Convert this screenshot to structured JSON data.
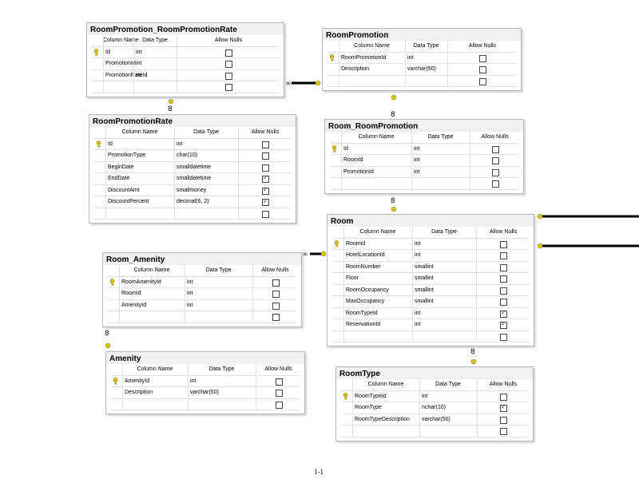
{
  "tables": {
    "rprr": {
      "title": "RoomPromotion_RoomPromotionRate",
      "headers": [
        "Column Name",
        "Data Type",
        "Allow Nulls"
      ],
      "rows": [
        {
          "name": "Id",
          "type": "int",
          "nulls": false,
          "key": true
        },
        {
          "name": "PromotionId",
          "type": "int",
          "nulls": false,
          "key": false
        },
        {
          "name": "PromotionRateId",
          "type": "int",
          "nulls": false,
          "key": false
        },
        {
          "name": "",
          "type": "",
          "nulls": false,
          "key": false
        }
      ]
    },
    "rp": {
      "title": "RoomPromotion",
      "headers": [
        "Column Name",
        "Data Type",
        "Allow Nulls"
      ],
      "rows": [
        {
          "name": "RoomPromotionId",
          "type": "int",
          "nulls": false,
          "key": true
        },
        {
          "name": "Description",
          "type": "varchar(50)",
          "nulls": false,
          "key": false
        },
        {
          "name": "",
          "type": "",
          "nulls": false,
          "key": false
        }
      ]
    },
    "rpr": {
      "title": "RoomPromotionRate",
      "headers": [
        "Column Name",
        "Data Type",
        "Allow Nulls"
      ],
      "rows": [
        {
          "name": "Id",
          "type": "int",
          "nulls": false,
          "key": true
        },
        {
          "name": "PromotionType",
          "type": "char(10)",
          "nulls": false,
          "key": false
        },
        {
          "name": "BeginDate",
          "type": "smalldatetime",
          "nulls": false,
          "key": false
        },
        {
          "name": "EndDate",
          "type": "smalldatetime",
          "nulls": true,
          "key": false
        },
        {
          "name": "DiscountAmt",
          "type": "smallmoney",
          "nulls": true,
          "key": false
        },
        {
          "name": "DiscountPercent",
          "type": "decimal(6, 2)",
          "nulls": true,
          "key": false
        },
        {
          "name": "",
          "type": "",
          "nulls": false,
          "key": false
        }
      ]
    },
    "rrp": {
      "title": "Room_RoomPromotion",
      "headers": [
        "Column Name",
        "Data Type",
        "Allow Nulls"
      ],
      "rows": [
        {
          "name": "Id",
          "type": "int",
          "nulls": false,
          "key": true
        },
        {
          "name": "RoomId",
          "type": "int",
          "nulls": false,
          "key": false
        },
        {
          "name": "PromotionId",
          "type": "int",
          "nulls": false,
          "key": false
        },
        {
          "name": "",
          "type": "",
          "nulls": false,
          "key": false
        }
      ]
    },
    "room": {
      "title": "Room",
      "headers": [
        "Column Name",
        "Data Type",
        "Allow Nulls"
      ],
      "rows": [
        {
          "name": "Roomid",
          "type": "int",
          "nulls": false,
          "key": true
        },
        {
          "name": "HotelLocationId",
          "type": "int",
          "nulls": false,
          "key": false
        },
        {
          "name": "RoomNumber",
          "type": "smallint",
          "nulls": false,
          "key": false
        },
        {
          "name": "Floor",
          "type": "smallint",
          "nulls": false,
          "key": false
        },
        {
          "name": "RoomOccupancy",
          "type": "smallint",
          "nulls": false,
          "key": false
        },
        {
          "name": "MaxOccupancy",
          "type": "smallint",
          "nulls": false,
          "key": false
        },
        {
          "name": "RoomTypeId",
          "type": "int",
          "nulls": true,
          "key": false
        },
        {
          "name": "ReservationId",
          "type": "int",
          "nulls": true,
          "key": false
        },
        {
          "name": "",
          "type": "",
          "nulls": false,
          "key": false
        }
      ]
    },
    "ra": {
      "title": "Room_Amenity",
      "headers": [
        "Column Name",
        "Data Type",
        "Allow Nulls"
      ],
      "rows": [
        {
          "name": "RoomAmenityId",
          "type": "int",
          "nulls": false,
          "key": true
        },
        {
          "name": "RoomId",
          "type": "int",
          "nulls": false,
          "key": false
        },
        {
          "name": "AmenityId",
          "type": "int",
          "nulls": false,
          "key": false
        },
        {
          "name": "",
          "type": "",
          "nulls": false,
          "key": false
        }
      ]
    },
    "amenity": {
      "title": "Amenity",
      "headers": [
        "Column Name",
        "Data Type",
        "Allow Nulls"
      ],
      "rows": [
        {
          "name": "AmenityId",
          "type": "int",
          "nulls": false,
          "key": true
        },
        {
          "name": "Description",
          "type": "varchar(50)",
          "nulls": false,
          "key": false
        },
        {
          "name": "",
          "type": "",
          "nulls": false,
          "key": false
        }
      ]
    },
    "rt": {
      "title": "RoomType",
      "headers": [
        "Column Name",
        "Data Type",
        "Allow Nulls"
      ],
      "rows": [
        {
          "name": "RoomTypeId",
          "type": "int",
          "nulls": false,
          "key": true
        },
        {
          "name": "RoomType",
          "type": "nchar(10)",
          "nulls": true,
          "key": false
        },
        {
          "name": "RoomTypeDescription",
          "type": "varchar(50)",
          "nulls": false,
          "key": false
        },
        {
          "name": "",
          "type": "",
          "nulls": false,
          "key": false
        }
      ]
    }
  },
  "footer": {
    "page_number": "1-1"
  },
  "colors": {
    "key_icon": "#e6c200",
    "connector": "#000000",
    "connector_end": "#d8c400"
  }
}
